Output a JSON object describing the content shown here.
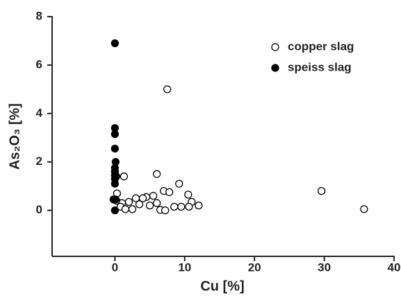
{
  "chart_data": {
    "type": "scatter",
    "xlabel": "Cu [%]",
    "ylabel": "As₂O₃ [%]",
    "xlim": [
      -9,
      40
    ],
    "xticks": [
      0,
      10,
      20,
      30,
      40
    ],
    "ylim": [
      -1.9,
      8
    ],
    "yticks": [
      0,
      2,
      4,
      6,
      8
    ],
    "legend": "upper right",
    "series": [
      {
        "name": "copper slag",
        "color": "#000000",
        "filled": false,
        "x": [
          7.5,
          6,
          1.3,
          9.2,
          7,
          7.8,
          10.5,
          5.5,
          4.5,
          3,
          4,
          11,
          2,
          1,
          3.5,
          5,
          8.5,
          9.5,
          12,
          0.8,
          1.5,
          2.5,
          6.5,
          7.2,
          10.6,
          29.6,
          35.7,
          0.3,
          0.2,
          6
        ],
        "values": [
          5.0,
          1.5,
          1.4,
          1.1,
          0.8,
          0.75,
          0.65,
          0.6,
          0.55,
          0.5,
          0.5,
          0.35,
          0.35,
          0.3,
          0.25,
          0.2,
          0.15,
          0.15,
          0.2,
          0.15,
          0.05,
          0.05,
          0.02,
          0,
          0.15,
          0.8,
          0.05,
          0.7,
          0.4,
          0.3
        ]
      },
      {
        "name": "speiss slag",
        "color": "#000000",
        "filled": true,
        "x": [
          0,
          0,
          0,
          0,
          0.1,
          0,
          0,
          0,
          0,
          0,
          0.2,
          -0.2,
          0,
          0.1
        ],
        "values": [
          6.9,
          3.4,
          3.15,
          2.55,
          2.0,
          1.75,
          1.6,
          1.45,
          1.3,
          1.1,
          1.4,
          0.45,
          0,
          0.45
        ]
      }
    ]
  }
}
